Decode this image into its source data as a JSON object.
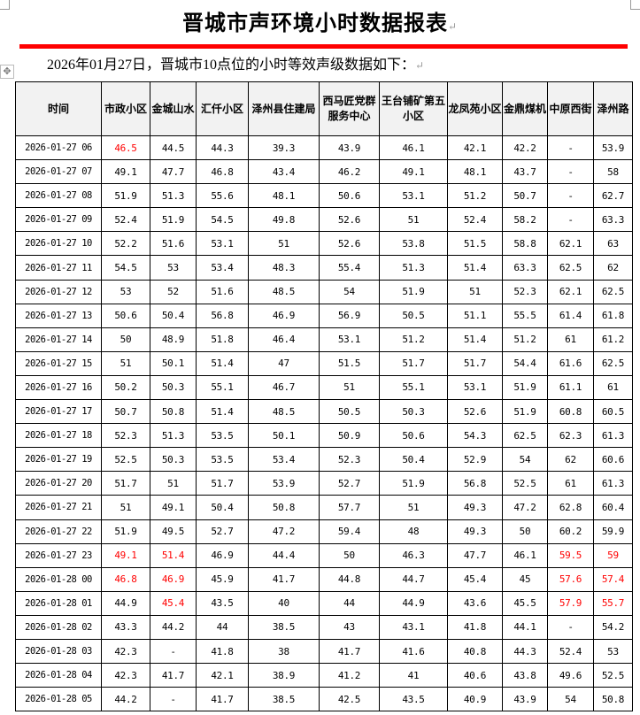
{
  "title": "晋城市声环境小时数据报表",
  "subtitle": "2026年01月27日，晋城市10点位的小时等效声级数据如下：",
  "colors": {
    "accent_line": "#ff0000",
    "exceed_text": "#ff0000"
  },
  "icons": {
    "move_handle": "move-icon"
  },
  "table": {
    "headers": [
      "时间",
      "市政小区",
      "金城山水",
      "汇仟小区",
      "泽州县住建局",
      "西马匠党群服务中心",
      "王台铺矿第五小区",
      "龙凤苑小区",
      "金鼎煤机",
      "中原西街",
      "泽州路"
    ],
    "rows": [
      {
        "time": "2026-01-27 06",
        "values": [
          "46.5",
          "44.5",
          "44.3",
          "39.3",
          "43.9",
          "46.1",
          "42.1",
          "42.2",
          "-",
          "53.9"
        ],
        "highlight": [
          0
        ]
      },
      {
        "time": "2026-01-27 07",
        "values": [
          "49.1",
          "47.7",
          "46.8",
          "43.4",
          "46.2",
          "49.1",
          "48.1",
          "43.7",
          "-",
          "58"
        ],
        "highlight": []
      },
      {
        "time": "2026-01-27 08",
        "values": [
          "51.9",
          "51.3",
          "55.6",
          "48.1",
          "50.6",
          "53.1",
          "51.2",
          "50.7",
          "-",
          "62.7"
        ],
        "highlight": []
      },
      {
        "time": "2026-01-27 09",
        "values": [
          "52.4",
          "51.9",
          "54.5",
          "49.8",
          "52.6",
          "51",
          "52.4",
          "58.2",
          "-",
          "63.3"
        ],
        "highlight": []
      },
      {
        "time": "2026-01-27 10",
        "values": [
          "52.2",
          "51.6",
          "53.1",
          "51",
          "52.6",
          "53.8",
          "51.5",
          "58.8",
          "62.1",
          "63"
        ],
        "highlight": []
      },
      {
        "time": "2026-01-27 11",
        "values": [
          "54.5",
          "53",
          "53.4",
          "48.3",
          "55.4",
          "51.3",
          "51.4",
          "63.3",
          "62.5",
          "62"
        ],
        "highlight": []
      },
      {
        "time": "2026-01-27 12",
        "values": [
          "53",
          "52",
          "51.6",
          "48.5",
          "54",
          "51.9",
          "51",
          "52.3",
          "62.1",
          "62.5"
        ],
        "highlight": []
      },
      {
        "time": "2026-01-27 13",
        "values": [
          "50.6",
          "50.4",
          "56.8",
          "46.9",
          "56.9",
          "50.5",
          "51.1",
          "55.5",
          "61.4",
          "61.8"
        ],
        "highlight": []
      },
      {
        "time": "2026-01-27 14",
        "values": [
          "50",
          "48.9",
          "51.8",
          "46.4",
          "53.1",
          "51.2",
          "51.4",
          "51.2",
          "61",
          "61.2"
        ],
        "highlight": []
      },
      {
        "time": "2026-01-27 15",
        "values": [
          "51",
          "50.1",
          "51.4",
          "47",
          "51.5",
          "51.7",
          "51.7",
          "54.4",
          "61.6",
          "62.5"
        ],
        "highlight": []
      },
      {
        "time": "2026-01-27 16",
        "values": [
          "50.2",
          "50.3",
          "55.1",
          "46.7",
          "51",
          "55.1",
          "53.1",
          "51.9",
          "61.1",
          "61"
        ],
        "highlight": []
      },
      {
        "time": "2026-01-27 17",
        "values": [
          "50.7",
          "50.8",
          "51.4",
          "48.5",
          "50.5",
          "50.3",
          "52.6",
          "51.9",
          "60.8",
          "60.5"
        ],
        "highlight": []
      },
      {
        "time": "2026-01-27 18",
        "values": [
          "52.3",
          "51.3",
          "53.5",
          "50.1",
          "50.9",
          "50.6",
          "54.3",
          "62.5",
          "62.3",
          "61.3"
        ],
        "highlight": []
      },
      {
        "time": "2026-01-27 19",
        "values": [
          "52.5",
          "50.3",
          "53.5",
          "53.4",
          "52.3",
          "50.4",
          "52.9",
          "54",
          "62",
          "60.6"
        ],
        "highlight": []
      },
      {
        "time": "2026-01-27 20",
        "values": [
          "51.7",
          "51",
          "51.7",
          "53.9",
          "52.7",
          "51.9",
          "56.8",
          "52.5",
          "61",
          "61.3"
        ],
        "highlight": []
      },
      {
        "time": "2026-01-27 21",
        "values": [
          "51",
          "49.1",
          "50.4",
          "50.8",
          "57.7",
          "51",
          "49.3",
          "47.2",
          "62.8",
          "60.4"
        ],
        "highlight": []
      },
      {
        "time": "2026-01-27 22",
        "values": [
          "51.9",
          "49.5",
          "52.7",
          "47.2",
          "59.4",
          "48",
          "49.3",
          "50",
          "60.2",
          "59.9"
        ],
        "highlight": []
      },
      {
        "time": "2026-01-27 23",
        "values": [
          "49.1",
          "51.4",
          "46.9",
          "44.4",
          "50",
          "46.3",
          "47.7",
          "46.1",
          "59.5",
          "59"
        ],
        "highlight": [
          0,
          1,
          8,
          9
        ]
      },
      {
        "time": "2026-01-28 00",
        "values": [
          "46.8",
          "46.9",
          "45.9",
          "41.7",
          "44.8",
          "44.7",
          "45.4",
          "45",
          "57.6",
          "57.4"
        ],
        "highlight": [
          0,
          1,
          8,
          9
        ]
      },
      {
        "time": "2026-01-28 01",
        "values": [
          "44.9",
          "45.4",
          "43.5",
          "40",
          "44",
          "44.9",
          "43.6",
          "45.5",
          "57.9",
          "55.7"
        ],
        "highlight": [
          1,
          8,
          9
        ]
      },
      {
        "time": "2026-01-28 02",
        "values": [
          "43.3",
          "44.2",
          "44",
          "38.5",
          "43",
          "43.1",
          "41.8",
          "44.1",
          "-",
          "54.2"
        ],
        "highlight": []
      },
      {
        "time": "2026-01-28 03",
        "values": [
          "42.3",
          "-",
          "41.8",
          "38",
          "41.7",
          "41.6",
          "40.8",
          "44.3",
          "52.4",
          "53"
        ],
        "highlight": []
      },
      {
        "time": "2026-01-28 04",
        "values": [
          "42.3",
          "41.7",
          "42.1",
          "38.9",
          "41.2",
          "41",
          "40.6",
          "43.8",
          "49.6",
          "52.5"
        ],
        "highlight": []
      },
      {
        "time": "2026-01-28 05",
        "values": [
          "44.2",
          "-",
          "41.7",
          "38.5",
          "42.5",
          "43.5",
          "40.9",
          "43.9",
          "54",
          "50.8"
        ],
        "highlight": []
      }
    ]
  }
}
